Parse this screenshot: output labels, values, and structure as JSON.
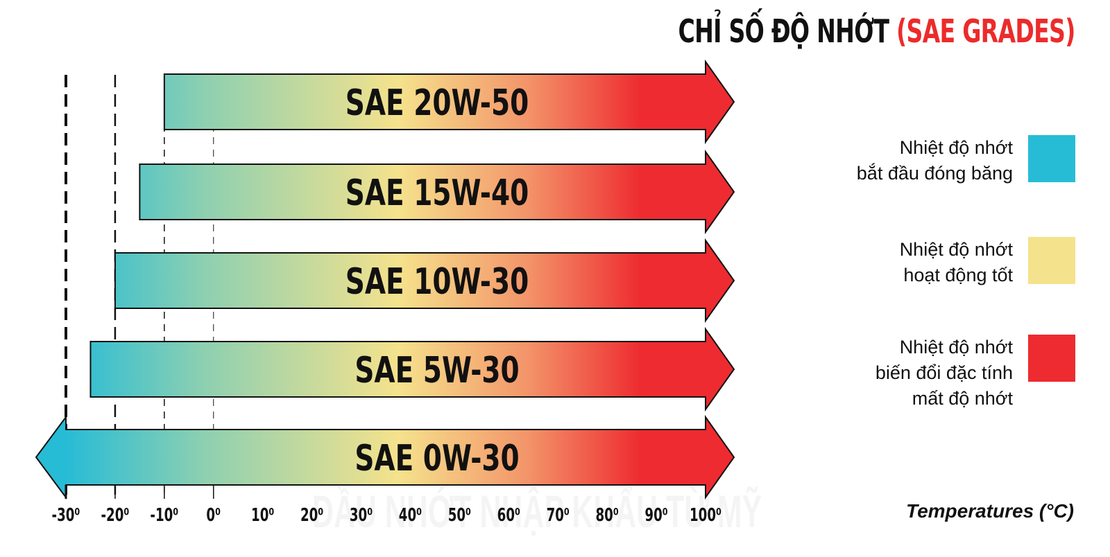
{
  "title": {
    "main": "CHỈ SỐ ĐỘ NHỚT",
    "highlight": "(SAE GRADES)"
  },
  "watermark": "ĐẦU NHỚT NHẬP KHẨU TỪ MỸ",
  "legend": [
    {
      "label": "Nhiệt độ nhớt\nbắt đầu đóng băng",
      "color": "#27bcd6"
    },
    {
      "label": "Nhiệt độ nhớt\nhoạt động tốt",
      "color": "#f5e28c"
    },
    {
      "label": "Nhiệt độ nhớt\nbiến đổi đặc tính\nmất độ nhớt",
      "color": "#ee2b30"
    }
  ],
  "chart_data": {
    "type": "bar",
    "orientation": "horizontal-range",
    "xlabel": "Temperatures (°C)",
    "xlim": [
      -30,
      100
    ],
    "x_ticks": [
      "-30⁰",
      "-20⁰",
      "-10⁰",
      "0⁰",
      "10⁰",
      "20⁰",
      "30⁰",
      "40⁰",
      "50⁰",
      "60⁰",
      "70⁰",
      "80⁰",
      "90⁰",
      "100⁰"
    ],
    "x_tick_values": [
      -30,
      -20,
      -10,
      0,
      10,
      20,
      30,
      40,
      50,
      60,
      70,
      80,
      90,
      100
    ],
    "reference_lines": [
      -30,
      -20,
      -10,
      0
    ],
    "bars": [
      {
        "label": "SAE 20W-50",
        "start": -10,
        "end": 100,
        "extends_below": false
      },
      {
        "label": "SAE 15W-40",
        "start": -15,
        "end": 100,
        "extends_below": false
      },
      {
        "label": "SAE 10W-30",
        "start": -20,
        "end": 100,
        "extends_below": false
      },
      {
        "label": "SAE 5W-30",
        "start": -25,
        "end": 100,
        "extends_below": false
      },
      {
        "label": "SAE 0W-30",
        "start": -30,
        "end": 100,
        "extends_below": true
      }
    ],
    "gradient": [
      "#27bcd6",
      "#f5e28c",
      "#ee2b30"
    ]
  }
}
